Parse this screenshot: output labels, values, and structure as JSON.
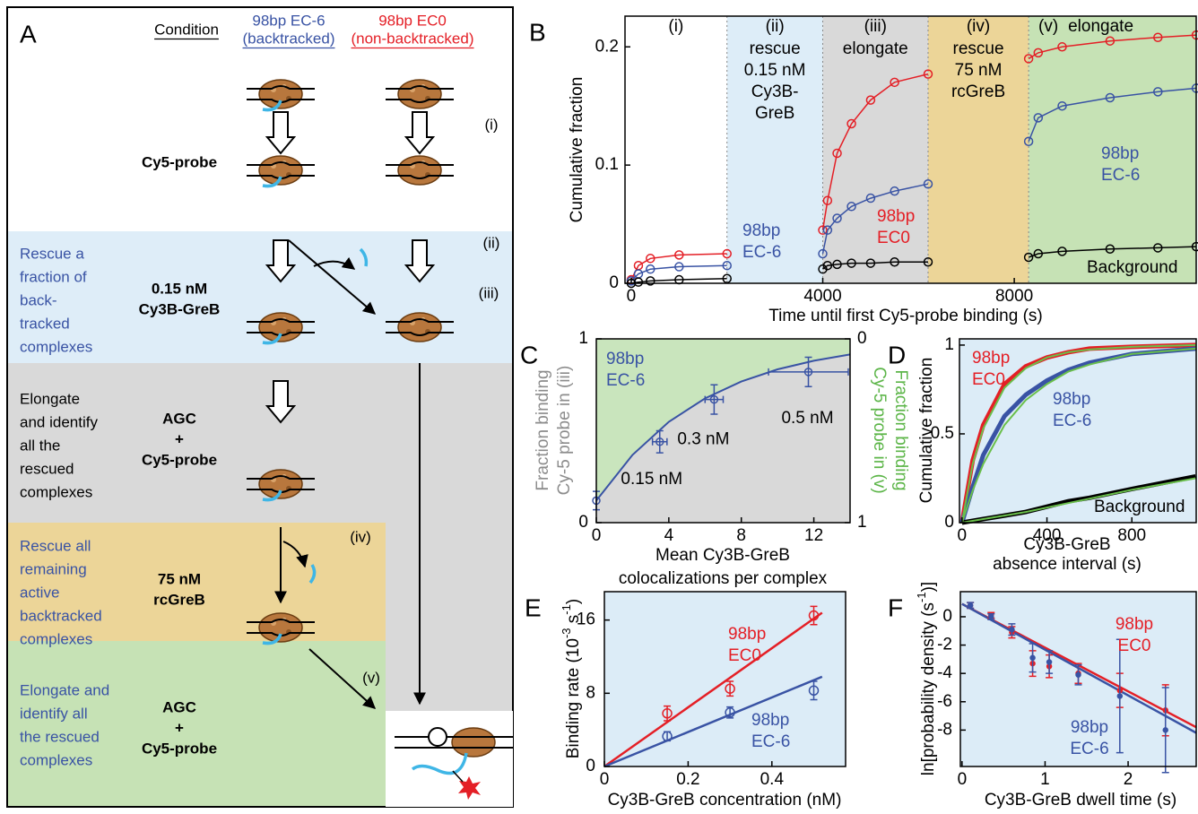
{
  "panel_a": {
    "letter": "A",
    "condition": "Condition",
    "columns": [
      {
        "title": "98bp EC-6",
        "note": "(backtracked)"
      },
      {
        "title": "98bp EC0",
        "note": "(non-backtracked)"
      }
    ],
    "steps": [
      {
        "tag": "(i)",
        "reagent": [
          "Cy5-probe"
        ]
      },
      {
        "tag": "(ii)",
        "purpose": [
          "Rescue a",
          "fraction of",
          "back-",
          "tracked",
          "complexes"
        ],
        "reagent": [
          "0.15 nM",
          "Cy3B-GreB"
        ]
      },
      {
        "tag": "(iii)",
        "purpose": [
          "Elongate",
          "and identify",
          "all the",
          "rescued",
          "complexes"
        ],
        "reagent": [
          "AGC",
          "+",
          "Cy5-probe"
        ]
      },
      {
        "tag": "(iv)",
        "purpose": [
          "Rescue all",
          "remaining",
          "active",
          "backtracked",
          "complexes"
        ],
        "reagent": [
          "75 nM",
          "rcGreB"
        ]
      },
      {
        "tag": "(v)",
        "purpose": [
          "Elongate and",
          "identify all",
          "the rescued",
          "complexes"
        ],
        "reagent": [
          "AGC",
          "+",
          "Cy5-probe"
        ]
      }
    ]
  },
  "chart_data": [
    {
      "letter": "B",
      "type": "line",
      "ylabel": "Cumulative fraction",
      "xlabel": "Time until first Cy5-probe binding (s)",
      "xlim": [
        -130,
        11800
      ],
      "ylim": [
        0,
        0.226
      ],
      "xticks": [
        0,
        4000,
        8000
      ],
      "yticks": [
        0,
        0.1,
        0.2
      ],
      "phases": [
        {
          "tag": "(i)",
          "start": -130,
          "end": 2000,
          "color": "#ffffff"
        },
        {
          "tag": "(ii)",
          "lines": [
            "rescue",
            "0.15 nM",
            "Cy3B-",
            "GreB"
          ],
          "start": 2000,
          "end": 4000,
          "color": "#ddedf8"
        },
        {
          "tag": "(iii)",
          "lines": [
            "elongate"
          ],
          "start": 4000,
          "end": 6200,
          "color": "#d9d9d9"
        },
        {
          "tag": "(iv)",
          "lines": [
            "rescue",
            "75 nM",
            "rcGreB"
          ],
          "start": 6200,
          "end": 8300,
          "color": "#ecd598"
        },
        {
          "tag": "(v)",
          "lines": [
            "elongate"
          ],
          "start": 8300,
          "end": 11800,
          "color": "#c6e2b5"
        }
      ],
      "series": [
        {
          "color": "#e41f26",
          "x": [
            0,
            150,
            400,
            1000,
            2000,
            3000,
            4000,
            4100,
            4300,
            4600,
            5000,
            5500,
            6200,
            7000,
            8300,
            8500,
            9000,
            10000,
            11000,
            11800
          ],
          "values": [
            0.003,
            0.015,
            0.021,
            0.024,
            0.025,
            null,
            0.045,
            0.07,
            0.11,
            0.135,
            0.155,
            0.17,
            0.177,
            null,
            0.19,
            0.195,
            0.2,
            0.205,
            0.208,
            0.21
          ]
        },
        {
          "color": "#3953a4",
          "x": [
            0,
            150,
            400,
            1000,
            2000,
            3000,
            4000,
            4100,
            4300,
            4600,
            5000,
            5500,
            6200,
            7000,
            8300,
            8500,
            9000,
            10000,
            11000,
            11800
          ],
          "values": [
            0.002,
            0.008,
            0.012,
            0.014,
            0.015,
            null,
            0.025,
            0.045,
            0.055,
            0.065,
            0.072,
            0.078,
            0.084,
            null,
            0.12,
            0.14,
            0.15,
            0.157,
            0.162,
            0.165
          ]
        },
        {
          "color": "#000000",
          "x": [
            0,
            150,
            400,
            1000,
            2000,
            3000,
            4000,
            4100,
            4300,
            4600,
            5000,
            5500,
            6200,
            7000,
            8300,
            8500,
            9000,
            10000,
            11000,
            11800
          ],
          "values": [
            0,
            0.001,
            0.002,
            0.003,
            0.004,
            null,
            0.012,
            0.015,
            0.016,
            0.017,
            0.017,
            0.018,
            0.018,
            null,
            0.022,
            0.025,
            0.027,
            0.029,
            0.03,
            0.031
          ]
        }
      ],
      "annotations": [
        {
          "lines": [
            "98bp",
            "EC-6"
          ],
          "color": "#3953a4"
        },
        {
          "lines": [
            "98bp",
            "EC0"
          ],
          "color": "#e41f26"
        },
        {
          "lines": [
            "98bp",
            "EC-6"
          ],
          "color": "#3953a4"
        },
        {
          "lines": [
            "Background"
          ],
          "color": "#000000"
        }
      ]
    },
    {
      "letter": "C",
      "type": "scatter",
      "ylabel": [
        "Fraction binding",
        "Cy-5 probe in (iii)"
      ],
      "ylabel_color": "#8c8c8c",
      "y2label": [
        "Fraction binding",
        "Cy-5 probe in (v)"
      ],
      "y2label_color": "#5cb548",
      "xlabel": [
        "Mean Cy3B-GreB",
        "colocalizations per complex"
      ],
      "xlim": [
        0,
        14
      ],
      "ylim": [
        0,
        1
      ],
      "y2lim": [
        1,
        0
      ],
      "xticks": [
        0,
        4,
        8,
        12
      ],
      "yticks": [
        0,
        1
      ],
      "y2ticks": [
        0,
        1
      ],
      "fill_above": "#c9e5bd",
      "fill_below": "#d9d9d9",
      "series": [
        {
          "color": "#3953a4",
          "x": [
            0,
            3.5,
            6.5,
            11.7
          ],
          "values": [
            0.12,
            0.44,
            0.67,
            0.82
          ],
          "xerr": [
            0,
            0.4,
            0.5,
            2.2
          ],
          "yerr": [
            0.05,
            0.06,
            0.08,
            0.08
          ],
          "point_labels": [
            null,
            "0.15 nM",
            "0.3 nM",
            "0.5 nM"
          ]
        }
      ],
      "fit": {
        "color": "#3953a4",
        "x": [
          0,
          2,
          4,
          6,
          8,
          10,
          12,
          14
        ],
        "values": [
          0.12,
          0.369,
          0.549,
          0.676,
          0.768,
          0.834,
          0.881,
          0.915
        ]
      },
      "annotations": [
        {
          "lines": [
            "98bp",
            "EC-6"
          ],
          "color": "#3953a4"
        }
      ]
    },
    {
      "letter": "D",
      "type": "line",
      "ylabel": "Cumulative fraction",
      "xlabel": [
        "Cy3B-GreB",
        "absence interval (s)"
      ],
      "xlim": [
        -12,
        1103
      ],
      "ylim": [
        0,
        1.035
      ],
      "xticks": [
        0,
        400,
        800
      ],
      "yticks": [
        0,
        0.5,
        1
      ],
      "background": "#dcecf7",
      "series": [
        {
          "color": "#e41f26",
          "x": [
            0,
            50,
            100,
            200,
            300,
            400,
            500,
            600,
            800,
            1100
          ],
          "values": [
            0,
            0.35,
            0.55,
            0.78,
            0.88,
            0.93,
            0.96,
            0.98,
            0.99,
            1.0
          ]
        },
        {
          "color": "#3953a4",
          "x": [
            0,
            50,
            100,
            200,
            300,
            400,
            500,
            600,
            800,
            1100
          ],
          "values": [
            0,
            0.2,
            0.38,
            0.6,
            0.72,
            0.8,
            0.86,
            0.9,
            0.95,
            0.98
          ]
        },
        {
          "color": "#000000",
          "x": [
            0,
            50,
            100,
            200,
            300,
            400,
            500,
            600,
            800,
            1100
          ],
          "values": [
            0,
            0.01,
            0.02,
            0.04,
            0.06,
            0.09,
            0.12,
            0.14,
            0.19,
            0.26
          ]
        }
      ],
      "fits": [
        {
          "color": "#6abf4b",
          "x": [
            0,
            50,
            100,
            200,
            300,
            400,
            500,
            600,
            800,
            1100
          ],
          "values": [
            0,
            0.33,
            0.53,
            0.76,
            0.87,
            0.93,
            0.96,
            0.975,
            0.99,
            1.0
          ]
        },
        {
          "color": "#6abf4b",
          "x": [
            0,
            50,
            100,
            200,
            300,
            400,
            500,
            600,
            800,
            1100
          ],
          "values": [
            0,
            0.18,
            0.33,
            0.55,
            0.69,
            0.78,
            0.85,
            0.89,
            0.95,
            0.98
          ]
        },
        {
          "color": "#6abf4b",
          "x": [
            0,
            50,
            100,
            200,
            300,
            400,
            500,
            600,
            800,
            1100
          ],
          "values": [
            0,
            0.01,
            0.02,
            0.04,
            0.06,
            0.085,
            0.11,
            0.135,
            0.185,
            0.25
          ]
        }
      ],
      "annotations": [
        {
          "lines": [
            "98bp",
            "EC0"
          ],
          "color": "#e41f26"
        },
        {
          "lines": [
            "98bp",
            "EC-6"
          ],
          "color": "#3953a4"
        },
        {
          "lines": [
            "Background"
          ],
          "color": "#000000"
        }
      ]
    },
    {
      "letter": "E",
      "type": "scatter",
      "ylabel": [
        "Binding rate (10",
        "-3",
        " s",
        "-1",
        ")"
      ],
      "xlabel": "Cy3B-GreB concentration (nM)",
      "xlim": [
        0,
        0.576
      ],
      "ylim": [
        0,
        19.1
      ],
      "xticks": [
        0,
        0.2,
        0.4
      ],
      "yticks": [
        0,
        8,
        16
      ],
      "background": "#dcecf7",
      "series": [
        {
          "color": "#e41f26",
          "x": [
            0.15,
            0.3,
            0.5
          ],
          "values": [
            5.8,
            8.5,
            16.5
          ],
          "yerr": [
            0.8,
            0.8,
            1.0
          ]
        },
        {
          "color": "#3953a4",
          "x": [
            0.15,
            0.3,
            0.5
          ],
          "values": [
            3.3,
            5.9,
            8.3
          ],
          "yerr": [
            0.5,
            0.6,
            1.0
          ]
        }
      ],
      "fits": [
        {
          "color": "#e41f26",
          "x": [
            0,
            0.52
          ],
          "values": [
            0,
            16.8
          ]
        },
        {
          "color": "#3953a4",
          "x": [
            0,
            0.52
          ],
          "values": [
            0,
            9.8
          ]
        }
      ],
      "annotations": [
        {
          "lines": [
            "98bp",
            "EC0"
          ],
          "color": "#e41f26"
        },
        {
          "lines": [
            "98bp",
            "EC-6"
          ],
          "color": "#3953a4"
        }
      ]
    },
    {
      "letter": "F",
      "type": "scatter",
      "ylabel": [
        "ln[probability density (s",
        "-1",
        ")]"
      ],
      "xlabel": "Cy3B-GreB dwell time (s)",
      "xlim": [
        -0.02,
        2.82
      ],
      "ylim": [
        -10.57,
        1.77
      ],
      "xticks": [
        0,
        1,
        2
      ],
      "yticks": [
        0,
        -2,
        -4,
        -6,
        -8
      ],
      "background": "#dcecf7",
      "series": [
        {
          "color": "#e41f26",
          "x": [
            0.1,
            0.35,
            0.6,
            0.85,
            1.05,
            1.4,
            1.9,
            2.45
          ],
          "values": [
            0.8,
            0.1,
            -1.1,
            -3.3,
            -3.5,
            -4.0,
            -5.2,
            -6.6
          ],
          "yerr": [
            0.2,
            0.2,
            0.4,
            0.9,
            0.8,
            0.7,
            1.2,
            1.8
          ]
        },
        {
          "color": "#3953a4",
          "x": [
            0.1,
            0.35,
            0.6,
            0.85,
            1.05,
            1.4,
            1.9,
            2.45
          ],
          "values": [
            0.8,
            0,
            -0.9,
            -2.9,
            -3.2,
            -4.1,
            -5.6,
            -8.0
          ],
          "yerr": [
            0.2,
            0.2,
            0.4,
            1.0,
            0.8,
            0.7,
            4.0,
            3.0
          ]
        }
      ],
      "fits": [
        {
          "color": "#e41f26",
          "x": [
            0,
            2.82
          ],
          "values": [
            0.9,
            -7.8
          ]
        },
        {
          "color": "#3953a4",
          "x": [
            0,
            2.82
          ],
          "values": [
            0.9,
            -8.2
          ]
        }
      ],
      "annotations": [
        {
          "lines": [
            "98bp",
            "EC0"
          ],
          "color": "#e41f26"
        },
        {
          "lines": [
            "98bp",
            "EC-6"
          ],
          "color": "#3953a4"
        }
      ]
    }
  ]
}
